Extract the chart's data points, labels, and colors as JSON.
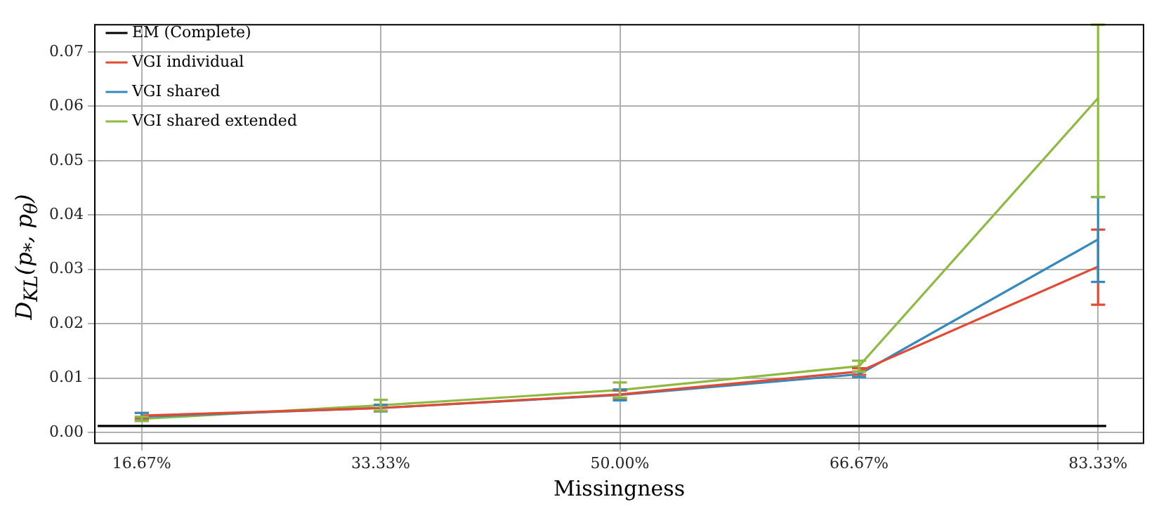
{
  "chart_data": {
    "type": "line",
    "xlabel": "Missingness",
    "ylabel": "D$_{KL}$(p$_{*}$, p$_{θ}$)",
    "x": [
      16.67,
      33.33,
      50,
      66.67,
      83.33
    ],
    "xlim": [
      13.4,
      86.5
    ],
    "xticks": [
      {
        "value": 16.67,
        "label": "16.67%"
      },
      {
        "value": 33.33,
        "label": "33.33%"
      },
      {
        "value": 50,
        "label": "50.00%"
      },
      {
        "value": 66.67,
        "label": "66.67%"
      },
      {
        "value": 83.33,
        "label": "83.33%"
      }
    ],
    "ylim": [
      -0.002,
      0.075
    ],
    "yticks": [
      {
        "value": 0,
        "label": "0.00"
      },
      {
        "value": 0.01,
        "label": "0.01"
      },
      {
        "value": 0.02,
        "label": "0.02"
      },
      {
        "value": 0.03,
        "label": "0.03"
      },
      {
        "value": 0.04,
        "label": "0.04"
      },
      {
        "value": 0.05,
        "label": "0.05"
      },
      {
        "value": 0.06,
        "label": "0.06"
      },
      {
        "value": 0.07,
        "label": "0.07"
      }
    ],
    "grid": true,
    "legend": "top left",
    "line_style": "solid",
    "series": [
      {
        "name": "EM (Complete)",
        "color": "#000000",
        "x": [
          13.6,
          83.9
        ],
        "values": [
          0.0012,
          0.0012
        ]
      },
      {
        "name": "VGI individual",
        "color": "#e24a33",
        "values": [
          0.0031,
          0.0045,
          0.007,
          0.0112,
          0.0305
        ],
        "errors": [
          0.0005,
          0.0006,
          0.0007,
          0.0006,
          [
            0.0235,
            0.0373
          ]
        ]
      },
      {
        "name": "VGI shared",
        "color": "#348abd",
        "values": [
          0.0029,
          0.0045,
          0.0069,
          0.0107,
          0.0355
        ],
        "errors": [
          0.0007,
          0.0006,
          0.001,
          0.0005,
          [
            0.0277,
            0.0433
          ]
        ]
      },
      {
        "name": "VGI shared extended",
        "color": "#8eba42",
        "values": [
          0.0025,
          0.005,
          0.0078,
          0.0122,
          0.0615
        ],
        "errors": [
          0.0004,
          0.001,
          0.0014,
          0.001,
          [
            0.0433,
            0.075
          ]
        ]
      }
    ]
  }
}
